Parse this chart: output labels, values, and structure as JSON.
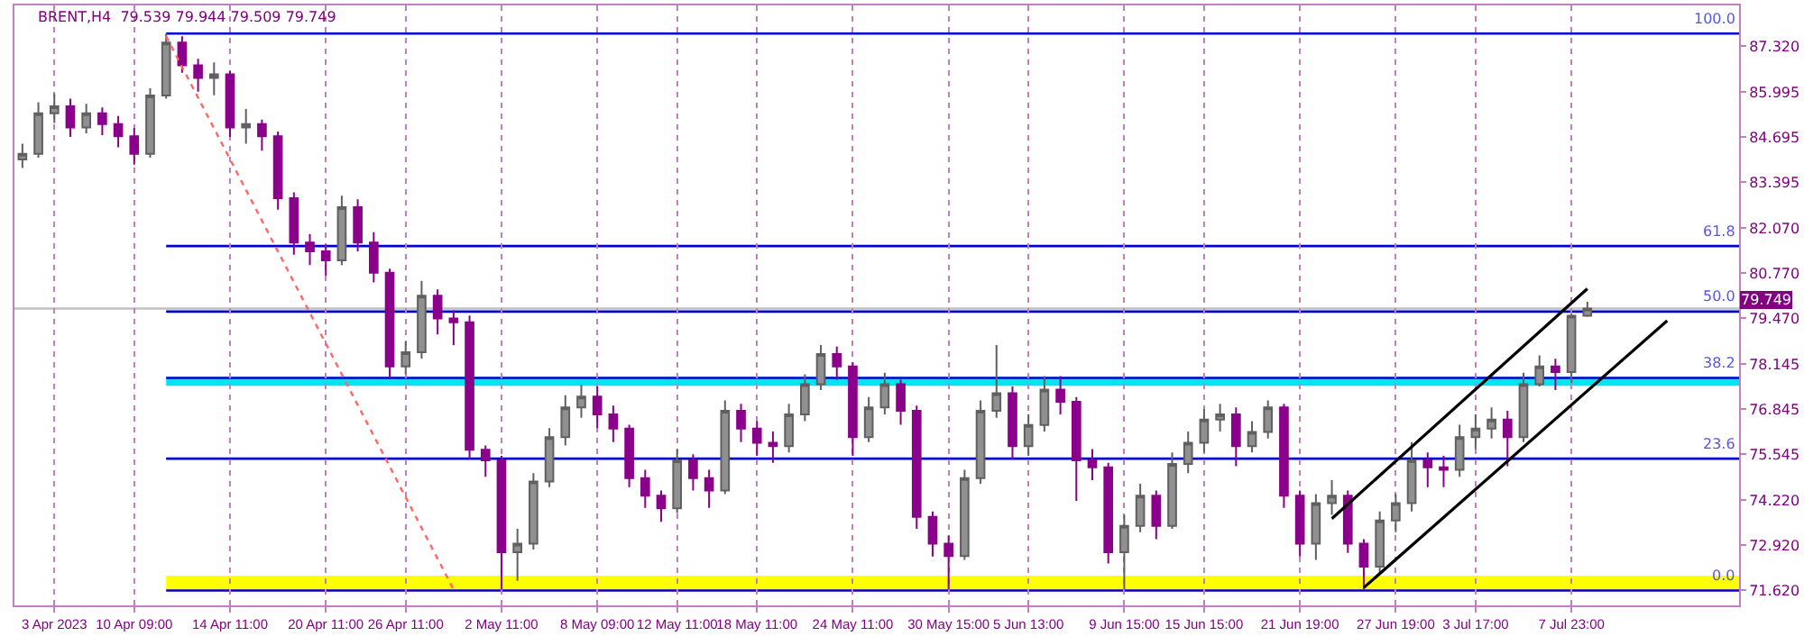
{
  "chart_data": {
    "type": "candlestick",
    "title": "BRENT,H4  79.539 79.944 79.509 79.749",
    "categories": [
      null,
      null,
      "3 Apr 2023",
      null,
      null,
      null,
      null,
      "10 Apr 09:00",
      null,
      null,
      null,
      null,
      null,
      "14 Apr 11:00",
      null,
      null,
      null,
      null,
      null,
      "20 Apr 11:00",
      null,
      null,
      null,
      null,
      "26 Apr 11:00",
      null,
      null,
      null,
      null,
      null,
      "2 May 11:00",
      null,
      null,
      null,
      null,
      null,
      "8 May 09:00",
      null,
      null,
      null,
      null,
      "12 May 11:00",
      null,
      null,
      null,
      null,
      "18 May 11:00",
      null,
      null,
      null,
      null,
      null,
      "24 May 11:00",
      null,
      null,
      null,
      null,
      null,
      "30 May 15:00",
      null,
      null,
      null,
      null,
      "5 Jun 13:00",
      null,
      null,
      null,
      null,
      null,
      "9 Jun 15:00",
      null,
      null,
      null,
      null,
      "15 Jun 15:00",
      null,
      null,
      null,
      null,
      null,
      "21 Jun 19:00",
      null,
      null,
      null,
      null,
      null,
      "27 Jun 19:00",
      null,
      null,
      null,
      null,
      "3 Jul 17:00",
      null,
      null,
      null,
      null,
      null,
      "7 Jul 23:00",
      null,
      null,
      null,
      null,
      null,
      null,
      null,
      null,
      null,
      null
    ],
    "ohlc": [
      [
        84.05,
        84.5,
        83.8,
        84.21
      ],
      [
        84.21,
        85.7,
        84.1,
        85.38
      ],
      [
        85.38,
        85.95,
        85.1,
        85.58
      ],
      [
        85.58,
        85.8,
        84.7,
        84.97
      ],
      [
        84.97,
        85.65,
        84.8,
        85.38
      ],
      [
        85.38,
        85.55,
        84.75,
        85.07
      ],
      [
        85.07,
        85.3,
        84.4,
        84.72
      ],
      [
        84.72,
        84.95,
        83.9,
        84.21
      ],
      [
        84.21,
        86.1,
        84.1,
        85.89
      ],
      [
        85.89,
        87.68,
        85.8,
        87.42
      ],
      [
        87.42,
        87.6,
        86.55,
        86.76
      ],
      [
        86.76,
        86.95,
        86.0,
        86.4
      ],
      [
        86.4,
        86.85,
        85.9,
        86.5
      ],
      [
        86.5,
        86.6,
        84.7,
        84.97
      ],
      [
        84.97,
        85.5,
        84.5,
        85.07
      ],
      [
        85.07,
        85.2,
        84.3,
        84.72
      ],
      [
        84.72,
        84.85,
        82.6,
        82.93
      ],
      [
        82.93,
        83.1,
        81.3,
        81.65
      ],
      [
        81.65,
        81.9,
        81.0,
        81.4
      ],
      [
        81.4,
        81.6,
        80.7,
        81.14
      ],
      [
        81.14,
        83.0,
        81.0,
        82.67
      ],
      [
        82.67,
        82.9,
        81.4,
        81.65
      ],
      [
        81.65,
        81.95,
        80.5,
        80.78
      ],
      [
        80.78,
        80.9,
        77.75,
        78.08
      ],
      [
        78.08,
        78.8,
        77.85,
        78.49
      ],
      [
        78.49,
        80.55,
        78.3,
        80.12
      ],
      [
        80.12,
        80.3,
        79.0,
        79.46
      ],
      [
        79.46,
        79.7,
        78.7,
        79.35
      ],
      [
        79.35,
        79.55,
        75.4,
        75.68
      ],
      [
        75.68,
        75.8,
        74.9,
        75.37
      ],
      [
        75.37,
        75.5,
        71.65,
        72.72
      ],
      [
        72.72,
        73.4,
        71.9,
        72.97
      ],
      [
        72.97,
        75.0,
        72.8,
        74.76
      ],
      [
        74.76,
        76.3,
        74.6,
        76.04
      ],
      [
        76.04,
        77.25,
        75.8,
        76.9
      ],
      [
        76.9,
        77.55,
        76.6,
        77.21
      ],
      [
        77.21,
        77.5,
        76.3,
        76.7
      ],
      [
        76.7,
        76.95,
        75.9,
        76.29
      ],
      [
        76.29,
        76.4,
        74.6,
        74.86
      ],
      [
        74.86,
        75.1,
        74.0,
        74.35
      ],
      [
        74.35,
        74.5,
        73.6,
        73.99
      ],
      [
        73.99,
        75.7,
        73.85,
        75.37
      ],
      [
        75.37,
        75.55,
        74.5,
        74.86
      ],
      [
        74.86,
        75.1,
        74.0,
        74.5
      ],
      [
        74.5,
        77.1,
        74.4,
        76.8
      ],
      [
        76.8,
        77.0,
        75.9,
        76.29
      ],
      [
        76.29,
        76.5,
        75.5,
        75.88
      ],
      [
        75.88,
        76.2,
        75.3,
        75.78
      ],
      [
        75.78,
        77.0,
        75.6,
        76.7
      ],
      [
        76.7,
        77.85,
        76.5,
        77.57
      ],
      [
        77.57,
        78.7,
        77.4,
        78.44
      ],
      [
        78.44,
        78.65,
        77.7,
        78.08
      ],
      [
        78.08,
        78.2,
        75.5,
        76.04
      ],
      [
        76.04,
        77.2,
        75.9,
        76.9
      ],
      [
        76.9,
        77.9,
        76.7,
        77.57
      ],
      [
        77.57,
        77.7,
        76.4,
        76.8
      ],
      [
        76.8,
        76.95,
        73.4,
        73.74
      ],
      [
        73.74,
        73.9,
        72.6,
        72.97
      ],
      [
        72.97,
        73.2,
        71.65,
        72.61
      ],
      [
        72.61,
        75.1,
        72.5,
        74.86
      ],
      [
        74.86,
        77.1,
        74.7,
        76.8
      ],
      [
        76.8,
        78.7,
        76.6,
        77.31
      ],
      [
        77.31,
        77.5,
        75.4,
        75.78
      ],
      [
        75.78,
        76.7,
        75.5,
        76.39
      ],
      [
        76.39,
        77.8,
        76.2,
        77.41
      ],
      [
        77.41,
        77.8,
        76.7,
        77.06
      ],
      [
        77.06,
        77.2,
        74.2,
        75.37
      ],
      [
        75.37,
        75.7,
        74.8,
        75.17
      ],
      [
        75.17,
        75.3,
        72.4,
        72.72
      ],
      [
        72.72,
        73.8,
        71.65,
        73.48
      ],
      [
        73.48,
        74.7,
        73.3,
        74.35
      ],
      [
        74.35,
        74.5,
        73.1,
        73.48
      ],
      [
        73.48,
        75.6,
        73.4,
        75.27
      ],
      [
        75.27,
        76.2,
        75.0,
        75.88
      ],
      [
        75.88,
        76.85,
        75.6,
        76.55
      ],
      [
        76.55,
        77.0,
        76.2,
        76.7
      ],
      [
        76.7,
        76.9,
        75.2,
        75.78
      ],
      [
        75.78,
        76.5,
        75.6,
        76.19
      ],
      [
        76.19,
        77.1,
        76.0,
        76.9
      ],
      [
        76.9,
        77.0,
        74.0,
        74.35
      ],
      [
        74.35,
        74.5,
        72.6,
        72.97
      ],
      [
        72.97,
        74.4,
        72.5,
        74.14
      ],
      [
        74.14,
        74.8,
        73.8,
        74.35
      ],
      [
        74.35,
        74.5,
        72.7,
        72.97
      ],
      [
        72.97,
        73.1,
        71.65,
        72.31
      ],
      [
        72.31,
        73.9,
        72.1,
        73.64
      ],
      [
        73.64,
        74.4,
        73.3,
        74.14
      ],
      [
        74.14,
        75.9,
        73.9,
        75.37
      ],
      [
        75.37,
        75.6,
        74.6,
        75.17
      ],
      [
        75.17,
        75.5,
        74.6,
        75.1
      ],
      [
        75.1,
        76.4,
        74.9,
        76.04
      ],
      [
        76.04,
        76.7,
        75.7,
        76.29
      ],
      [
        76.29,
        76.9,
        76.0,
        76.55
      ],
      [
        76.55,
        76.8,
        75.2,
        76.04
      ],
      [
        76.04,
        77.9,
        75.9,
        77.57
      ],
      [
        77.57,
        78.4,
        77.5,
        78.08
      ],
      [
        78.08,
        78.3,
        77.4,
        77.92
      ],
      [
        77.92,
        79.6,
        77.6,
        79.539
      ],
      [
        79.539,
        79.944,
        79.509,
        79.749
      ],
      null,
      null,
      null,
      null,
      null,
      null,
      null,
      null,
      null
    ],
    "series": [
      {
        "type": "line",
        "color": "#ff6666",
        "line_style": "dotted",
        "values": [
          null,
          null,
          null,
          null,
          null,
          null,
          null,
          null,
          null,
          87.6,
          null,
          null,
          null,
          null,
          null,
          null,
          null,
          null,
          null,
          null,
          null,
          null,
          null,
          null,
          null,
          null,
          null,
          71.65,
          null,
          null,
          null,
          null,
          null,
          null,
          null,
          null,
          null,
          null,
          null,
          null,
          null,
          null,
          null,
          null,
          null,
          null,
          null,
          null,
          null,
          null,
          null,
          null,
          null,
          null,
          null,
          null,
          null,
          null,
          null,
          null,
          null,
          null,
          null,
          null,
          null,
          null,
          null,
          null,
          null,
          null,
          null,
          null,
          null,
          null,
          null,
          null,
          null,
          null,
          null,
          null,
          null,
          null,
          null,
          null,
          null,
          null,
          null,
          null,
          null,
          null,
          null,
          null,
          null,
          null,
          null,
          null,
          null,
          null,
          null,
          null,
          null,
          null,
          null,
          null,
          null,
          null,
          null,
          null
        ]
      },
      {
        "type": "line",
        "color": "#000000",
        "line_style": "solid",
        "values": [
          null,
          null,
          null,
          null,
          null,
          null,
          null,
          null,
          null,
          null,
          null,
          null,
          null,
          null,
          null,
          null,
          null,
          null,
          null,
          null,
          null,
          null,
          null,
          null,
          null,
          null,
          null,
          null,
          null,
          null,
          null,
          null,
          null,
          null,
          null,
          null,
          null,
          null,
          null,
          null,
          null,
          null,
          null,
          null,
          null,
          null,
          null,
          null,
          null,
          null,
          null,
          null,
          null,
          null,
          null,
          null,
          null,
          null,
          null,
          null,
          null,
          null,
          null,
          null,
          null,
          null,
          null,
          null,
          null,
          null,
          null,
          null,
          null,
          null,
          null,
          null,
          null,
          null,
          null,
          null,
          null,
          null,
          73.69,
          null,
          null,
          null,
          null,
          null,
          null,
          null,
          null,
          null,
          null,
          null,
          null,
          null,
          null,
          null,
          80.32,
          null,
          null,
          null,
          null,
          null,
          null,
          null,
          null,
          null
        ]
      },
      {
        "type": "line",
        "color": "#000000",
        "line_style": "solid",
        "values": [
          null,
          null,
          null,
          null,
          null,
          null,
          null,
          null,
          null,
          null,
          null,
          null,
          null,
          null,
          null,
          null,
          null,
          null,
          null,
          null,
          null,
          null,
          null,
          null,
          null,
          null,
          null,
          null,
          null,
          null,
          null,
          null,
          null,
          null,
          null,
          null,
          null,
          null,
          null,
          null,
          null,
          null,
          null,
          null,
          null,
          null,
          null,
          null,
          null,
          null,
          null,
          null,
          null,
          null,
          null,
          null,
          null,
          null,
          null,
          null,
          null,
          null,
          null,
          null,
          null,
          null,
          null,
          null,
          null,
          null,
          null,
          null,
          null,
          null,
          null,
          null,
          null,
          null,
          null,
          null,
          null,
          null,
          null,
          null,
          71.7,
          null,
          null,
          null,
          null,
          null,
          null,
          null,
          null,
          null,
          null,
          null,
          null,
          null,
          null,
          null,
          null,
          null,
          null,
          79.4,
          null,
          null,
          null,
          null
        ]
      }
    ],
    "ylim": [
      71.19,
      88.49
    ],
    "yticks": [
      {
        "value": 87.32,
        "label": "87.320"
      },
      {
        "value": 85.995,
        "label": "85.995"
      },
      {
        "value": 84.695,
        "label": "84.695"
      },
      {
        "value": 83.395,
        "label": "83.395"
      },
      {
        "value": 82.07,
        "label": "82.070"
      },
      {
        "value": 80.77,
        "label": "80.770"
      },
      {
        "value": 79.47,
        "label": "79.470"
      },
      {
        "value": 78.145,
        "label": "78.145"
      },
      {
        "value": 76.845,
        "label": "76.845"
      },
      {
        "value": 75.545,
        "label": "75.545"
      },
      {
        "value": 74.22,
        "label": "74.220"
      },
      {
        "value": 72.92,
        "label": "72.920"
      },
      {
        "value": 71.62,
        "label": "71.620"
      }
    ],
    "ref_lines": [
      {
        "axis": "y",
        "value": 87.68,
        "color": "#0000cd"
      },
      {
        "axis": "y",
        "value": 81.55,
        "color": "#0000cd"
      },
      {
        "axis": "y",
        "value": 79.66,
        "color": "#0000cd"
      },
      {
        "axis": "y",
        "value": 77.75,
        "color": "#0000cd"
      },
      {
        "axis": "y",
        "value": 75.42,
        "color": "#0000cd"
      },
      {
        "axis": "y",
        "value": 71.62,
        "color": "#0000cd"
      },
      {
        "axis": "y",
        "value": 79.749,
        "label": "79.749",
        "color": "#c0c0c0"
      }
    ],
    "bands": [
      {
        "axis": "y",
        "from": 77.52,
        "to": 77.77,
        "color": "#00e5ee"
      },
      {
        "axis": "y",
        "from": 71.64,
        "to": 72.05,
        "color": "#ffff00"
      }
    ],
    "annotations": [
      {
        "text": "100.0",
        "y": 87.68
      },
      {
        "text": "61.8",
        "y": 81.55
      },
      {
        "text": "50.0",
        "y": 79.66
      },
      {
        "text": "38.2",
        "y": 77.75
      },
      {
        "text": "23.6",
        "y": 75.42
      },
      {
        "text": "0.0",
        "y": 71.62
      }
    ],
    "grid": "x"
  }
}
